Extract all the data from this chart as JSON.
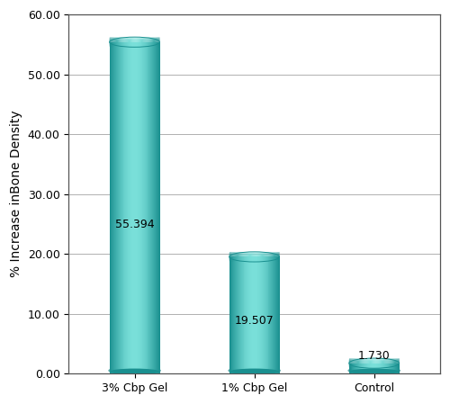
{
  "categories": [
    "3% Cbp Gel",
    "1% Cbp Gel",
    "Control"
  ],
  "values": [
    55.394,
    19.507,
    1.73
  ],
  "labels": [
    "55.394",
    "19.507",
    "1.730"
  ],
  "bar_color_main": "#3ec8be",
  "bar_color_light": "#7ae0da",
  "bar_color_dark": "#1a9090",
  "bar_color_shadow": "#228888",
  "ylabel": "% Increase inBone Density",
  "ylim": [
    0,
    60
  ],
  "yticks": [
    0.0,
    10.0,
    20.0,
    30.0,
    40.0,
    50.0,
    60.0
  ],
  "ytick_labels": [
    "0.00",
    "10.00",
    "20.00",
    "30.00",
    "40.00",
    "50.00",
    "60.00"
  ],
  "background_color": "#ffffff",
  "bar_width": 0.42,
  "label_fontsize": 9,
  "tick_fontsize": 9,
  "ylabel_fontsize": 10
}
